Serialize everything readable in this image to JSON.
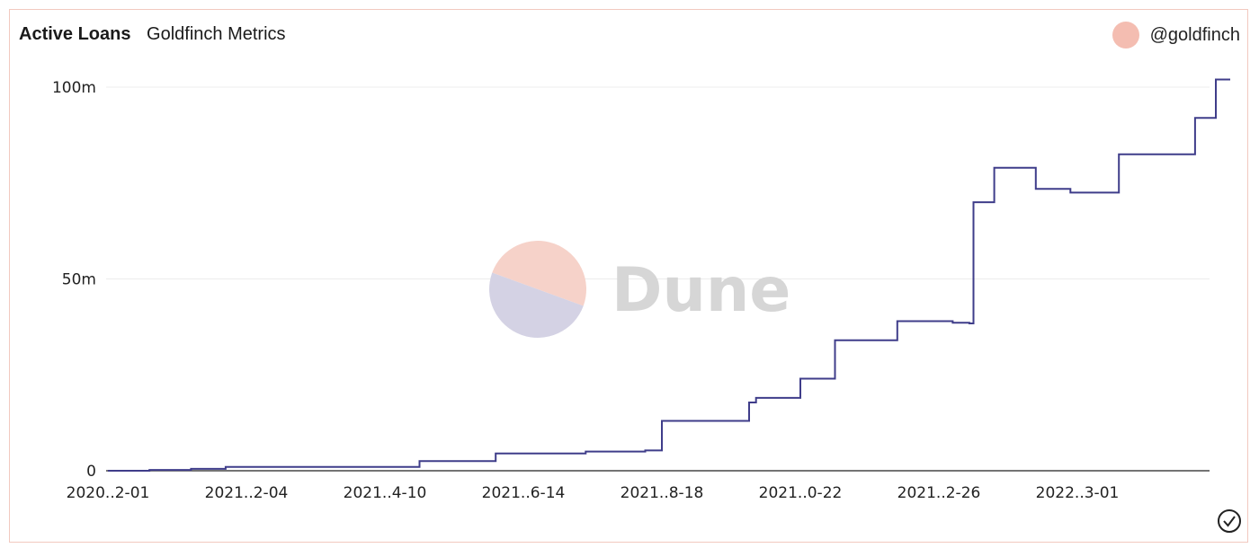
{
  "header": {
    "title": "Active Loans",
    "subtitle": "Goldfinch Metrics",
    "author": "@goldfinch"
  },
  "watermark": "Dune",
  "status_icon": "check-circle-icon",
  "colors": {
    "line": "#3f3d8a",
    "grid": "#ececec",
    "border": "#f2c9bf",
    "avatar": "#f4bdb1",
    "logo_top": "#f6d2c9",
    "logo_bottom": "#d4d2e4"
  },
  "chart_data": {
    "type": "line",
    "title": "Active Loans",
    "subtitle": "Goldfinch Metrics",
    "x_tick_labels": [
      "2020..2-01",
      "2021..2-04",
      "2021..4-10",
      "2021..6-14",
      "2021..8-18",
      "2021..0-22",
      "2021..2-26",
      "2022..3-01"
    ],
    "y_tick_labels": [
      "0",
      "50m",
      "100m"
    ],
    "ylim": [
      0,
      100
    ],
    "y_unit": "m",
    "grid": true,
    "legend": "none",
    "series": [
      {
        "x": [
          0.0,
          0.3,
          0.6,
          0.85,
          1.0,
          2.05,
          2.25,
          2.6,
          2.8,
          3.35,
          3.45,
          3.55,
          3.88,
          4.0,
          4.5,
          4.63,
          4.68,
          5.0,
          5.25,
          5.7,
          6.0,
          6.1,
          6.22,
          6.25,
          6.4,
          6.7,
          6.95,
          7.0,
          7.3,
          7.85,
          8.0
        ],
        "y": [
          0,
          0.2,
          0.5,
          1.0,
          1.0,
          1.0,
          2.5,
          2.5,
          4.5,
          4.5,
          5.0,
          5.0,
          5.3,
          13.0,
          13.0,
          17.8,
          19.0,
          24.0,
          34.0,
          39.0,
          39.0,
          38.6,
          38.4,
          70.0,
          79.0,
          73.5,
          72.5,
          72.5,
          82.5,
          92.0,
          102.0
        ]
      }
    ]
  }
}
